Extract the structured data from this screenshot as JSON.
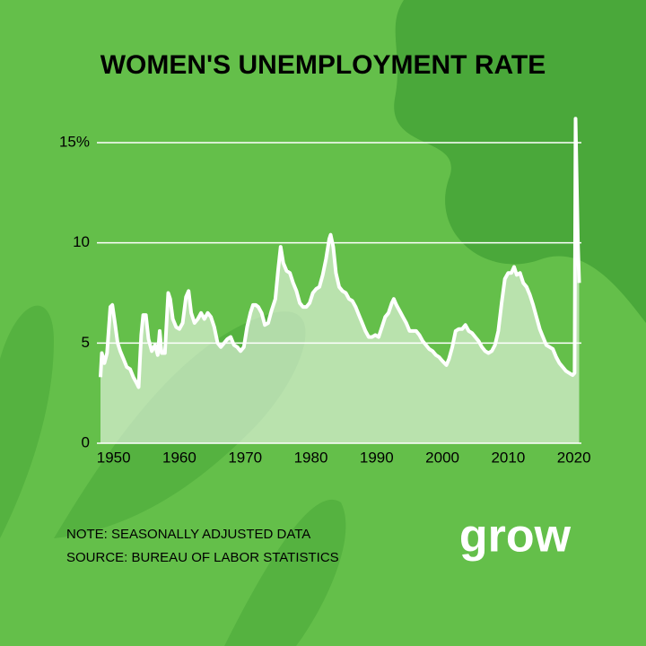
{
  "chart_data": {
    "type": "area",
    "title": "WOMEN'S UNEMPLOYMENT RATE",
    "x": [
      1948.0,
      1948.2,
      1948.6,
      1949.0,
      1949.5,
      1949.8,
      1950.2,
      1950.6,
      1951.0,
      1951.5,
      1952.0,
      1952.5,
      1953.0,
      1953.5,
      1953.8,
      1954.2,
      1954.5,
      1954.9,
      1955.3,
      1955.8,
      1956.3,
      1956.7,
      1957.0,
      1957.3,
      1957.8,
      1958.3,
      1958.6,
      1959.0,
      1959.5,
      1960.0,
      1960.5,
      1961.0,
      1961.4,
      1961.8,
      1962.3,
      1962.8,
      1963.3,
      1963.8,
      1964.3,
      1964.8,
      1965.3,
      1965.8,
      1966.3,
      1966.8,
      1967.3,
      1967.8,
      1968.3,
      1968.8,
      1969.3,
      1969.8,
      1970.3,
      1970.8,
      1971.2,
      1971.6,
      1972.0,
      1972.5,
      1973.0,
      1973.5,
      1974.0,
      1974.6,
      1975.0,
      1975.4,
      1975.8,
      1976.3,
      1976.8,
      1977.3,
      1977.8,
      1978.3,
      1978.8,
      1979.3,
      1979.8,
      1980.3,
      1980.8,
      1981.3,
      1981.8,
      1982.3,
      1982.8,
      1983.0,
      1983.4,
      1983.8,
      1984.3,
      1984.8,
      1985.3,
      1985.8,
      1986.3,
      1986.8,
      1987.3,
      1987.8,
      1988.3,
      1988.8,
      1989.3,
      1989.8,
      1990.3,
      1990.8,
      1991.3,
      1991.8,
      1992.3,
      1992.6,
      1993.0,
      1993.5,
      1994.0,
      1994.5,
      1995.0,
      1995.5,
      1996.0,
      1996.5,
      1997.0,
      1997.5,
      1998.0,
      1998.5,
      1999.0,
      1999.5,
      2000.0,
      2000.6,
      2001.0,
      2001.5,
      2002.0,
      2002.5,
      2003.0,
      2003.5,
      2004.0,
      2004.5,
      2005.0,
      2005.5,
      2006.0,
      2006.5,
      2007.0,
      2007.5,
      2008.0,
      2008.5,
      2009.0,
      2009.5,
      2010.0,
      2010.5,
      2010.9,
      2011.3,
      2011.8,
      2012.3,
      2012.8,
      2013.3,
      2013.8,
      2014.3,
      2014.8,
      2015.3,
      2015.8,
      2016.3,
      2016.8,
      2017.3,
      2017.8,
      2018.3,
      2018.8,
      2019.3,
      2019.8,
      2020.1,
      2020.25,
      2020.4,
      2020.6,
      2020.8
    ],
    "values": [
      3.3,
      4.5,
      4.0,
      4.5,
      6.8,
      6.9,
      6.0,
      5.0,
      4.6,
      4.2,
      3.8,
      3.7,
      3.3,
      3.0,
      2.8,
      5.4,
      6.4,
      6.4,
      5.2,
      4.6,
      4.9,
      4.4,
      5.6,
      4.5,
      4.5,
      7.5,
      7.2,
      6.2,
      5.8,
      5.7,
      6.0,
      7.3,
      7.6,
      6.5,
      6.0,
      6.2,
      6.5,
      6.2,
      6.5,
      6.3,
      5.8,
      5.0,
      4.8,
      5.0,
      5.2,
      5.3,
      4.9,
      4.8,
      4.6,
      4.8,
      5.8,
      6.5,
      6.9,
      6.9,
      6.8,
      6.5,
      5.9,
      6.0,
      6.6,
      7.2,
      8.6,
      9.8,
      9.0,
      8.6,
      8.5,
      8.0,
      7.6,
      7.0,
      6.8,
      6.8,
      7.0,
      7.5,
      7.7,
      7.8,
      8.4,
      9.2,
      10.2,
      10.4,
      9.8,
      8.5,
      7.8,
      7.6,
      7.5,
      7.2,
      7.1,
      6.8,
      6.4,
      6.0,
      5.6,
      5.3,
      5.3,
      5.4,
      5.3,
      5.8,
      6.3,
      6.5,
      7.0,
      7.2,
      6.9,
      6.6,
      6.3,
      6.0,
      5.6,
      5.6,
      5.6,
      5.4,
      5.1,
      4.9,
      4.7,
      4.6,
      4.4,
      4.3,
      4.1,
      3.9,
      4.2,
      4.8,
      5.6,
      5.7,
      5.7,
      5.9,
      5.6,
      5.5,
      5.3,
      5.1,
      4.8,
      4.6,
      4.5,
      4.6,
      4.9,
      5.6,
      7.0,
      8.2,
      8.5,
      8.5,
      8.8,
      8.4,
      8.5,
      8.0,
      7.8,
      7.4,
      6.9,
      6.3,
      5.7,
      5.3,
      4.9,
      4.8,
      4.7,
      4.3,
      4.0,
      3.8,
      3.6,
      3.5,
      3.4,
      3.5,
      16.2,
      13.5,
      10.0,
      8.0
    ],
    "color": "#ffffff",
    "xlim": [
      1948,
      2021
    ],
    "xticks": [
      1950,
      1960,
      1970,
      1980,
      1990,
      2000,
      2010,
      2020
    ],
    "ylim": [
      0,
      16.5
    ],
    "yticks": [
      0,
      5,
      10,
      {
        "value": 15,
        "label": "15%"
      }
    ],
    "grid": true,
    "annotations": [
      "NOTE: SEASONALLY ADJUSTED DATA",
      "SOURCE: BUREAU OF LABOR STATISTICS"
    ]
  },
  "logo": "grow"
}
